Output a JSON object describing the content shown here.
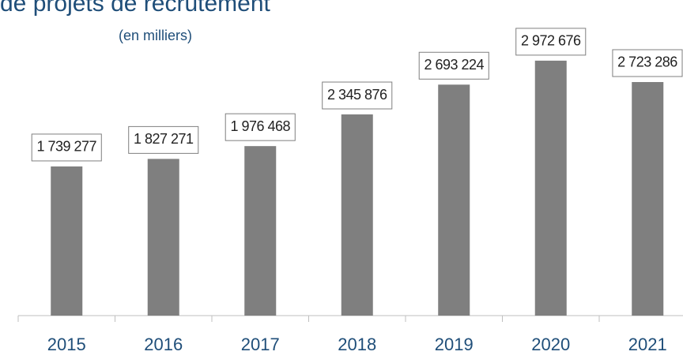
{
  "chart_data": {
    "type": "bar",
    "title": "de projets de recrutement",
    "subtitle": "(en milliers)",
    "categories": [
      "2015",
      "2016",
      "2017",
      "2018",
      "2019",
      "2020",
      "2021"
    ],
    "values": [
      1739277,
      1827271,
      1976468,
      2345876,
      2693224,
      2972676,
      2723286
    ],
    "value_labels": [
      "1 739 277",
      "1 827 271",
      "1 976 468",
      "2 345 876",
      "2 693 224",
      "2 972 676",
      "2 723 286"
    ],
    "color": "#7f7f7f",
    "ylim": [
      0,
      3680000
    ]
  }
}
